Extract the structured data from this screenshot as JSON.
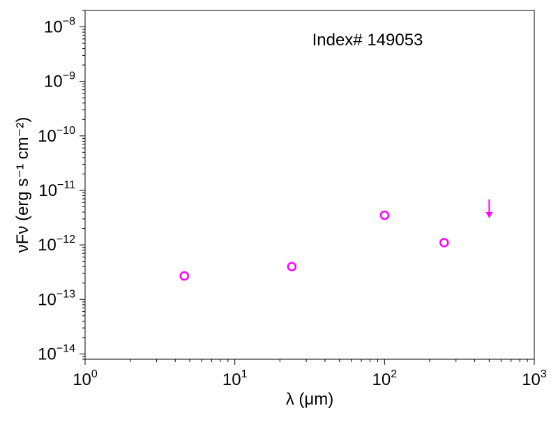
{
  "chart_data": {
    "type": "scatter",
    "title": "",
    "annotation": "Index# 149053",
    "xlabel": "λ (μm)",
    "ylabel": "νFν (erg s⁻¹ cm⁻²)",
    "xscale": "log",
    "yscale": "log",
    "xlim": [
      1,
      1000
    ],
    "ylim": [
      8e-15,
      2e-08
    ],
    "grid": false,
    "legend": "none",
    "x_ticks": [
      {
        "base": "10",
        "exp": "0",
        "value": 1
      },
      {
        "base": "10",
        "exp": "1",
        "value": 10
      },
      {
        "base": "10",
        "exp": "2",
        "value": 100
      },
      {
        "base": "10",
        "exp": "3",
        "value": 1000
      }
    ],
    "y_ticks": [
      {
        "base": "10",
        "exp": "−14",
        "value": 1e-14
      },
      {
        "base": "10",
        "exp": "−13",
        "value": 1e-13
      },
      {
        "base": "10",
        "exp": "−12",
        "value": 1e-12
      },
      {
        "base": "10",
        "exp": "−11",
        "value": 1e-11
      },
      {
        "base": "10",
        "exp": "−10",
        "value": 1e-10
      },
      {
        "base": "10",
        "exp": "−9",
        "value": 1e-09
      },
      {
        "base": "10",
        "exp": "−8",
        "value": 1e-08
      }
    ],
    "series": [
      {
        "marker": "open-circle",
        "color": "#ff00ff",
        "points": [
          {
            "x": 4.6,
            "y": 2.7e-13
          },
          {
            "x": 24,
            "y": 4e-13
          },
          {
            "x": 100,
            "y": 3.5e-12
          },
          {
            "x": 250,
            "y": 1.1e-12
          }
        ]
      },
      {
        "marker": "upper-limit-arrow",
        "color": "#ff00ff",
        "points": [
          {
            "x": 500,
            "y": 4.8e-12
          }
        ]
      }
    ]
  }
}
